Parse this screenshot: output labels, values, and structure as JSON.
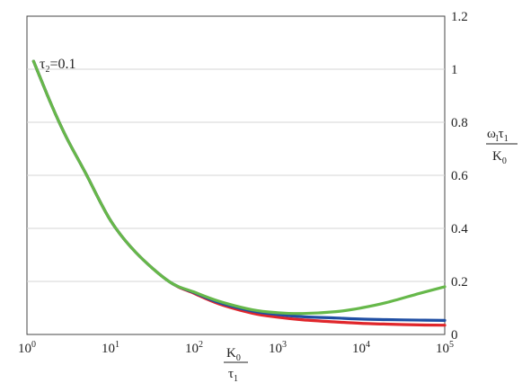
{
  "chart_data": {
    "type": "line",
    "x_scale": "log",
    "xlim": [
      1,
      100000
    ],
    "ylim": [
      0,
      1.2
    ],
    "grid": true,
    "x_ticks": [
      {
        "base": "10",
        "exp": "0"
      },
      {
        "base": "10",
        "exp": "1"
      },
      {
        "base": "10",
        "exp": "2"
      },
      {
        "base": "10",
        "exp": "3"
      },
      {
        "base": "10",
        "exp": "4"
      },
      {
        "base": "10",
        "exp": "5"
      }
    ],
    "y_ticks": [
      "0",
      "0.2",
      "0.4",
      "0.6",
      "0.8",
      "1",
      "1.2"
    ],
    "xlabel": {
      "numerator": "K",
      "numerator_sub": "0",
      "denominator": "τ",
      "denominator_sub": "1"
    },
    "ylabel": {
      "numerator": "ω",
      "numerator_sub": "l",
      "numerator_tail": "τ",
      "numerator_tail_sub": "1",
      "denominator": "K",
      "denominator_sub": "0"
    },
    "annotation": {
      "symbol": "τ",
      "sub": "2",
      "text": "=0.1"
    },
    "series": [
      {
        "color": "#e0262b",
        "x": [
          1.2,
          2,
          3,
          5,
          10,
          20,
          50,
          100,
          200,
          500,
          1000,
          2000,
          5000,
          10000,
          20000,
          50000,
          100000
        ],
        "y": [
          1.03,
          0.86,
          0.74,
          0.61,
          0.43,
          0.31,
          0.2,
          0.155,
          0.115,
          0.08,
          0.065,
          0.055,
          0.047,
          0.042,
          0.039,
          0.036,
          0.035
        ]
      },
      {
        "color": "#1f4ea3",
        "x": [
          1.2,
          2,
          3,
          5,
          10,
          20,
          50,
          100,
          200,
          500,
          1000,
          2000,
          5000,
          10000,
          20000,
          50000,
          100000
        ],
        "y": [
          1.03,
          0.86,
          0.74,
          0.61,
          0.43,
          0.31,
          0.2,
          0.158,
          0.12,
          0.088,
          0.075,
          0.067,
          0.062,
          0.058,
          0.056,
          0.054,
          0.053
        ]
      },
      {
        "color": "#66b84a",
        "x": [
          1.2,
          2,
          3,
          5,
          10,
          20,
          50,
          100,
          200,
          500,
          1000,
          2000,
          5000,
          10000,
          20000,
          50000,
          100000
        ],
        "y": [
          1.03,
          0.86,
          0.74,
          0.61,
          0.43,
          0.31,
          0.2,
          0.16,
          0.125,
          0.093,
          0.082,
          0.079,
          0.086,
          0.1,
          0.12,
          0.155,
          0.18
        ]
      }
    ]
  }
}
